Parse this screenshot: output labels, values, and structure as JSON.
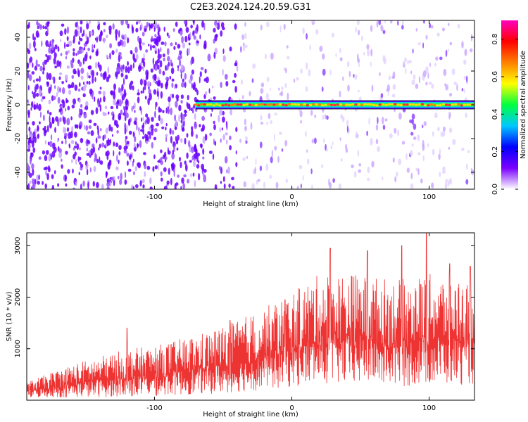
{
  "title": "C2E3.2024.124.20.59.G31",
  "chart_data": [
    {
      "type": "heatmap",
      "xlabel": "Height of straight line (km)",
      "ylabel": "Frequency (Hz)",
      "xlim": [
        -193,
        133
      ],
      "ylim": [
        -50,
        50
      ],
      "x_ticks": [
        -100,
        0,
        100
      ],
      "y_ticks": [
        -40,
        -20,
        0,
        20,
        40
      ],
      "colorbar": {
        "label": "Normalized spectral amplitude",
        "range": [
          0,
          0.9
        ],
        "ticks": [
          0.0,
          0.2,
          0.4,
          0.6,
          0.8
        ],
        "colors": [
          "#ffffff",
          "#7a00ff",
          "#0000ff",
          "#00c8ff",
          "#00ff40",
          "#ffff00",
          "#ff8000",
          "#ff0000",
          "#ff00c0"
        ]
      },
      "signal": {
        "frequency": 0,
        "start_x": -70,
        "end_x": 133
      },
      "noise": {
        "dense_until_x": -80,
        "sparse_after_x": -40
      }
    },
    {
      "type": "line",
      "xlabel": "Height of straight line (km)",
      "ylabel": "SNR (10 * v/v)",
      "xlim": [
        -193,
        133
      ],
      "ylim": [
        0,
        3250
      ],
      "x_ticks": [
        -100,
        0,
        100
      ],
      "y_ticks": [
        1000,
        2000,
        3000
      ],
      "series": [
        {
          "color": "#ee3333",
          "envelope": {
            "x": [
              -193,
              -160,
              -140,
              -120,
              -100,
              -80,
              -60,
              -40,
              -20,
              0,
              20,
              40,
              60,
              80,
              100,
              120,
              133
            ],
            "lower": [
              50,
              50,
              60,
              60,
              80,
              100,
              120,
              150,
              200,
              250,
              300,
              300,
              300,
              250,
              300,
              300,
              300
            ],
            "upper": [
              350,
              700,
              850,
              1000,
              1050,
              1200,
              1350,
              1550,
              1800,
              2100,
              2450,
              2500,
              2400,
              2350,
              2450,
              2400,
              2300
            ],
            "peaks": [
              [
                -120,
                1400
              ],
              [
                -45,
                1550
              ],
              [
                -5,
                1950
              ],
              [
                28,
                2950
              ],
              [
                55,
                2900
              ],
              [
                80,
                3000
              ],
              [
                98,
                3250
              ],
              [
                115,
                2650
              ],
              [
                130,
                2600
              ]
            ]
          }
        }
      ]
    }
  ]
}
